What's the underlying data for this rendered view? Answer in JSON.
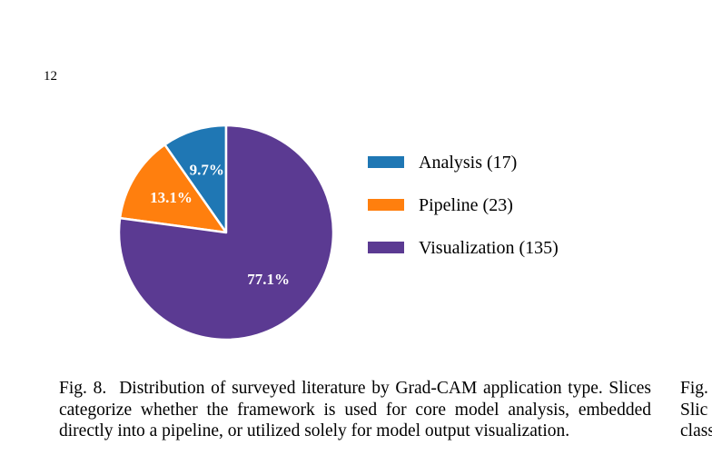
{
  "page_number": "12",
  "chart_data": {
    "type": "pie",
    "slices": [
      {
        "label": "Analysis",
        "count": 17,
        "percent_label": "9.7%",
        "color": "#1f77b4"
      },
      {
        "label": "Pipeline",
        "count": 23,
        "percent_label": "13.1%",
        "color": "#ff7f0e"
      },
      {
        "label": "Visualization",
        "count": 135,
        "percent_label": "77.1%",
        "color": "#5b3a92"
      }
    ],
    "legend": [
      {
        "text": "Analysis (17)",
        "color": "#1f77b4"
      },
      {
        "text": "Pipeline (23)",
        "color": "#ff7f0e"
      },
      {
        "text": "Visualization (135)",
        "color": "#5b3a92"
      }
    ],
    "legend_position": "right"
  },
  "caption": {
    "label": "Fig. 8.",
    "text": "Distribution of surveyed literature by Grad-CAM application type. Slices categorize whether the framework is used for core model analysis, embedded directly into a pipeline, or utilized solely for model output visualization."
  },
  "right_caption_lines": [
    "Fig.",
    "Slic",
    "class"
  ]
}
